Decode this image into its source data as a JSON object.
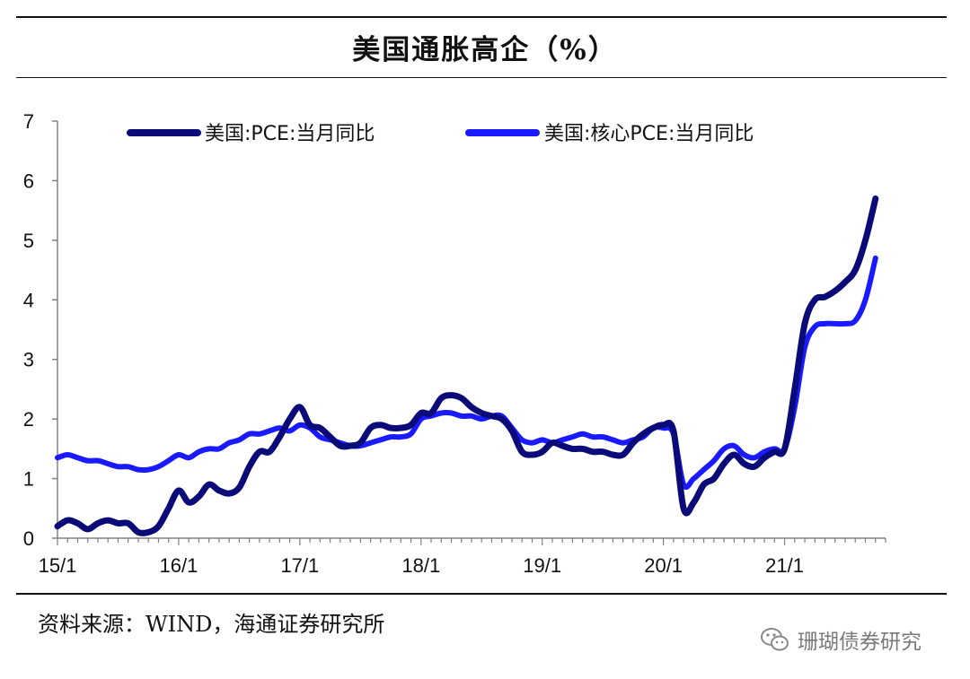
{
  "header": {
    "title": "美国通胀高企（%）"
  },
  "footer": {
    "source": "资料来源：WIND，海通证券研究所",
    "watermark": "珊瑚债券研究"
  },
  "icons": {
    "watermark": "wechat-icon"
  },
  "chart_data": {
    "type": "line",
    "title": "美国通胀高企（%）",
    "xlabel": "",
    "ylabel": "",
    "ylim": [
      0,
      7
    ],
    "yticks": [
      "0",
      "1",
      "2",
      "3",
      "4",
      "5",
      "6",
      "7"
    ],
    "xtick_labels": [
      "15/1",
      "16/1",
      "17/1",
      "18/1",
      "19/1",
      "20/1",
      "21/1"
    ],
    "x": [
      "15/1",
      "15/2",
      "15/3",
      "15/4",
      "15/5",
      "15/6",
      "15/7",
      "15/8",
      "15/9",
      "15/10",
      "15/11",
      "15/12",
      "16/1",
      "16/2",
      "16/3",
      "16/4",
      "16/5",
      "16/6",
      "16/7",
      "16/8",
      "16/9",
      "16/10",
      "16/11",
      "16/12",
      "17/1",
      "17/2",
      "17/3",
      "17/4",
      "17/5",
      "17/6",
      "17/7",
      "17/8",
      "17/9",
      "17/10",
      "17/11",
      "17/12",
      "18/1",
      "18/2",
      "18/3",
      "18/4",
      "18/5",
      "18/6",
      "18/7",
      "18/8",
      "18/9",
      "18/10",
      "18/11",
      "18/12",
      "19/1",
      "19/2",
      "19/3",
      "19/4",
      "19/5",
      "19/6",
      "19/7",
      "19/8",
      "19/9",
      "19/10",
      "19/11",
      "19/12",
      "20/1",
      "20/2",
      "20/3",
      "20/4",
      "20/5",
      "20/6",
      "20/7",
      "20/8",
      "20/9",
      "20/10",
      "20/11",
      "20/12",
      "21/1",
      "21/2",
      "21/3",
      "21/4",
      "21/5",
      "21/6",
      "21/7",
      "21/8",
      "21/9",
      "21/10"
    ],
    "grid": false,
    "legend_position": "top",
    "series": [
      {
        "name": "美国:PCE:当月同比",
        "color": "#0a0a78",
        "values": [
          0.2,
          0.3,
          0.25,
          0.15,
          0.25,
          0.3,
          0.25,
          0.25,
          0.1,
          0.1,
          0.2,
          0.5,
          0.8,
          0.6,
          0.7,
          0.9,
          0.8,
          0.75,
          0.85,
          1.2,
          1.45,
          1.45,
          1.7,
          2.0,
          2.2,
          1.9,
          1.85,
          1.7,
          1.55,
          1.55,
          1.6,
          1.85,
          1.9,
          1.85,
          1.85,
          1.9,
          2.1,
          2.1,
          2.35,
          2.4,
          2.35,
          2.2,
          2.1,
          2.05,
          2.0,
          1.8,
          1.45,
          1.4,
          1.45,
          1.6,
          1.55,
          1.5,
          1.5,
          1.45,
          1.45,
          1.4,
          1.4,
          1.6,
          1.75,
          1.85,
          1.9,
          1.8,
          0.5,
          0.6,
          0.9,
          1.0,
          1.25,
          1.4,
          1.25,
          1.2,
          1.35,
          1.45,
          1.5,
          2.5,
          3.6,
          4.0,
          4.05,
          4.15,
          4.3,
          4.5,
          5.0,
          5.7
        ]
      },
      {
        "name": "美国:核心PCE:当月同比",
        "color": "#1a1aff",
        "values": [
          1.35,
          1.4,
          1.35,
          1.3,
          1.3,
          1.25,
          1.2,
          1.2,
          1.15,
          1.15,
          1.2,
          1.3,
          1.4,
          1.35,
          1.45,
          1.5,
          1.5,
          1.6,
          1.65,
          1.75,
          1.75,
          1.8,
          1.85,
          1.8,
          1.9,
          1.85,
          1.7,
          1.65,
          1.6,
          1.55,
          1.55,
          1.6,
          1.65,
          1.7,
          1.7,
          1.75,
          2.0,
          2.05,
          2.1,
          2.1,
          2.05,
          2.05,
          2.0,
          2.05,
          2.05,
          1.85,
          1.65,
          1.6,
          1.65,
          1.6,
          1.65,
          1.7,
          1.75,
          1.7,
          1.7,
          1.65,
          1.6,
          1.65,
          1.7,
          1.85,
          1.85,
          1.75,
          0.9,
          1.0,
          1.15,
          1.3,
          1.5,
          1.55,
          1.4,
          1.35,
          1.45,
          1.5,
          1.5,
          2.2,
          3.2,
          3.55,
          3.6,
          3.6,
          3.6,
          3.65,
          4.0,
          4.7
        ]
      }
    ]
  }
}
